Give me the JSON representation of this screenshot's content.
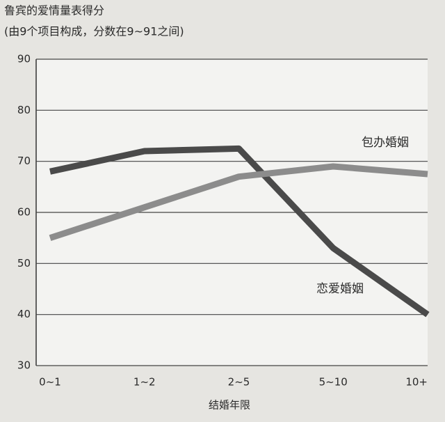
{
  "chart_data": {
    "type": "line",
    "title": "鲁宾的爱情量表得分",
    "subtitle": "(由9个项目构成，分数在9~91之间)",
    "x_label": "结婚年限",
    "categories": [
      "0~1",
      "1~2",
      "2~5",
      "5~10",
      "10+"
    ],
    "series": [
      {
        "name": "恋爱婚姻",
        "color": "#4a4a4a",
        "values": [
          68,
          72,
          72.5,
          53,
          40
        ]
      },
      {
        "name": "包办婚姻",
        "color": "#8c8c8c",
        "values": [
          55,
          61,
          67,
          69,
          67.5
        ]
      }
    ],
    "ylim": [
      30,
      90
    ],
    "yticks": [
      30,
      40,
      50,
      60,
      70,
      80,
      90
    ],
    "grid": true
  }
}
